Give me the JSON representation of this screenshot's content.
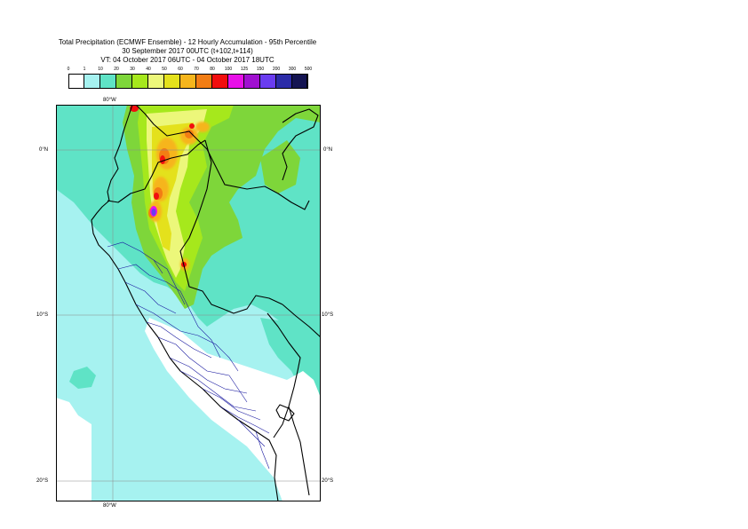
{
  "title": {
    "line1": "Total Precipitation (ECMWF Ensemble) - 12 Hourly Accumulation - 95th Percentile",
    "line2": "30 September 2017 00UTC (t+102,t+114)",
    "line3": "VT: 04 October 2017 06UTC - 04 October 2017 18UTC"
  },
  "legend": {
    "thresholds": [
      "0",
      "1",
      "10",
      "20",
      "30",
      "40",
      "50",
      "60",
      "70",
      "80",
      "100",
      "125",
      "150",
      "200",
      "300",
      "500"
    ],
    "colors": [
      "#ffffff",
      "#a6f2f0",
      "#5fe3c6",
      "#7ed63a",
      "#a6e81c",
      "#ecf77a",
      "#e4e11c",
      "#f6b51c",
      "#f27d14",
      "#f20e0e",
      "#e810e8",
      "#a010d0",
      "#6a3cf0",
      "#2c2ca8",
      "#141452"
    ]
  },
  "map": {
    "lon_labels": {
      "top": "80°W",
      "bottom": "80°W"
    },
    "lat_labels": [
      {
        "name": "lat-0",
        "text": "0°N"
      },
      {
        "name": "lat-10s",
        "text": "10°S"
      },
      {
        "name": "lat-20s",
        "text": "20°S"
      }
    ]
  }
}
